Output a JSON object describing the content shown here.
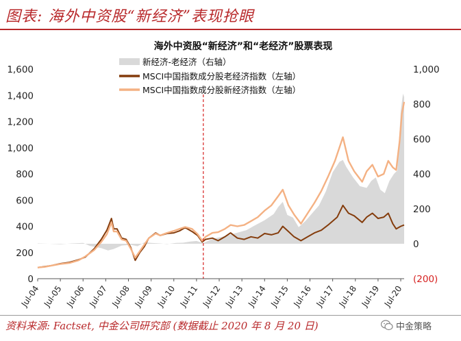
{
  "figure_title": "图表: 海外中资股“新经济”表现抢眼",
  "source": "资料来源: Factset, 中金公司研究部 (数据截止 2020 年 8 月 20 日)",
  "watermark": "中金策略",
  "chart_data": {
    "type": "line",
    "title": "海外中资股“新经济”和“老经济”股票表现",
    "x": [
      "Jul-04",
      "Jul-05",
      "Jul-06",
      "Jul-07",
      "Jul-08",
      "Jul-09",
      "Jul-10",
      "Jul-11",
      "Jul-12",
      "Jul-13",
      "Jul-14",
      "Jul-15",
      "Jul-16",
      "Jul-17",
      "Jul-18",
      "Jul-19",
      "Jul-20"
    ],
    "x_start": 2004.5,
    "x_end": 2020.65,
    "left_axis": {
      "ylim": [
        0,
        1600
      ],
      "ticks": [
        0,
        200,
        400,
        600,
        800,
        1000,
        1200,
        1400,
        1600
      ],
      "tick_labels": [
        "0",
        "200",
        "400",
        "600",
        "800",
        "1,000",
        "1,200",
        "1,400",
        "1,600"
      ]
    },
    "right_axis": {
      "ylim": [
        -200,
        1000
      ],
      "ticks": [
        -200,
        0,
        200,
        400,
        600,
        800,
        1000
      ],
      "tick_labels": [
        "(200)",
        "0",
        "200",
        "400",
        "600",
        "800",
        "1,000"
      ]
    },
    "vertical_reference": {
      "x": 2011.8,
      "style": "dashed",
      "color": "#d6201f"
    },
    "legend_location": "top-left",
    "series": [
      {
        "name": "新经济-老经济（右轴）",
        "kind": "area",
        "axis": "right",
        "color": "#d9d9d9",
        "points": [
          [
            2004.5,
            2
          ],
          [
            2005.0,
            0
          ],
          [
            2005.5,
            -3
          ],
          [
            2006.0,
            2
          ],
          [
            2006.5,
            5
          ],
          [
            2006.8,
            -12
          ],
          [
            2007.3,
            -25
          ],
          [
            2007.6,
            -38
          ],
          [
            2007.85,
            -30
          ],
          [
            2008.2,
            -10
          ],
          [
            2008.6,
            -6
          ],
          [
            2008.9,
            -14
          ],
          [
            2009.2,
            8
          ],
          [
            2009.5,
            5
          ],
          [
            2009.9,
            2
          ],
          [
            2010.2,
            -2
          ],
          [
            2010.6,
            5
          ],
          [
            2010.9,
            6
          ],
          [
            2011.2,
            12
          ],
          [
            2011.5,
            16
          ],
          [
            2011.8,
            4
          ],
          [
            2012.2,
            28
          ],
          [
            2012.7,
            42
          ],
          [
            2013.2,
            60
          ],
          [
            2013.7,
            78
          ],
          [
            2014.0,
            100
          ],
          [
            2014.5,
            135
          ],
          [
            2014.9,
            170
          ],
          [
            2015.1,
            210
          ],
          [
            2015.3,
            240
          ],
          [
            2015.5,
            165
          ],
          [
            2015.75,
            150
          ],
          [
            2016.0,
            95
          ],
          [
            2016.3,
            130
          ],
          [
            2016.6,
            175
          ],
          [
            2016.9,
            220
          ],
          [
            2017.2,
            300
          ],
          [
            2017.5,
            410
          ],
          [
            2017.8,
            470
          ],
          [
            2017.95,
            480
          ],
          [
            2018.1,
            440
          ],
          [
            2018.4,
            380
          ],
          [
            2018.7,
            330
          ],
          [
            2019.0,
            320
          ],
          [
            2019.2,
            360
          ],
          [
            2019.4,
            380
          ],
          [
            2019.6,
            310
          ],
          [
            2019.8,
            290
          ],
          [
            2020.0,
            360
          ],
          [
            2020.2,
            400
          ],
          [
            2020.35,
            420
          ],
          [
            2020.5,
            760
          ],
          [
            2020.6,
            860
          ],
          [
            2020.65,
            840
          ]
        ]
      },
      {
        "name": "MSCI中国指数成分股老经济指数（左轴）",
        "kind": "line",
        "axis": "left",
        "color": "#843c0c",
        "points": [
          [
            2004.5,
            85
          ],
          [
            2004.8,
            92
          ],
          [
            2005.1,
            100
          ],
          [
            2005.5,
            115
          ],
          [
            2005.9,
            125
          ],
          [
            2006.3,
            145
          ],
          [
            2006.6,
            165
          ],
          [
            2007.0,
            230
          ],
          [
            2007.3,
            300
          ],
          [
            2007.55,
            370
          ],
          [
            2007.75,
            460
          ],
          [
            2007.85,
            380
          ],
          [
            2008.0,
            380
          ],
          [
            2008.2,
            310
          ],
          [
            2008.4,
            300
          ],
          [
            2008.6,
            240
          ],
          [
            2008.8,
            140
          ],
          [
            2009.0,
            200
          ],
          [
            2009.2,
            245
          ],
          [
            2009.4,
            310
          ],
          [
            2009.7,
            350
          ],
          [
            2009.9,
            330
          ],
          [
            2010.2,
            345
          ],
          [
            2010.5,
            350
          ],
          [
            2010.75,
            365
          ],
          [
            2011.0,
            390
          ],
          [
            2011.3,
            360
          ],
          [
            2011.55,
            330
          ],
          [
            2011.75,
            280
          ],
          [
            2011.9,
            300
          ],
          [
            2012.2,
            310
          ],
          [
            2012.45,
            290
          ],
          [
            2012.75,
            320
          ],
          [
            2013.0,
            350
          ],
          [
            2013.3,
            310
          ],
          [
            2013.6,
            300
          ],
          [
            2013.9,
            320
          ],
          [
            2014.2,
            310
          ],
          [
            2014.5,
            345
          ],
          [
            2014.8,
            335
          ],
          [
            2015.1,
            350
          ],
          [
            2015.3,
            400
          ],
          [
            2015.55,
            360
          ],
          [
            2015.8,
            320
          ],
          [
            2016.1,
            290
          ],
          [
            2016.4,
            320
          ],
          [
            2016.7,
            350
          ],
          [
            2017.0,
            370
          ],
          [
            2017.3,
            410
          ],
          [
            2017.7,
            470
          ],
          [
            2017.95,
            560
          ],
          [
            2018.2,
            500
          ],
          [
            2018.45,
            480
          ],
          [
            2018.8,
            430
          ],
          [
            2019.0,
            470
          ],
          [
            2019.25,
            500
          ],
          [
            2019.5,
            460
          ],
          [
            2019.75,
            470
          ],
          [
            2019.95,
            500
          ],
          [
            2020.15,
            420
          ],
          [
            2020.3,
            380
          ],
          [
            2020.5,
            400
          ],
          [
            2020.65,
            410
          ]
        ]
      },
      {
        "name": "MSCI中国指数成分股新经济指数（左轴）",
        "kind": "line",
        "axis": "left",
        "color": "#f4b183",
        "points": [
          [
            2004.5,
            85
          ],
          [
            2004.8,
            90
          ],
          [
            2005.1,
            100
          ],
          [
            2005.5,
            112
          ],
          [
            2005.9,
            120
          ],
          [
            2006.3,
            140
          ],
          [
            2006.6,
            170
          ],
          [
            2007.0,
            220
          ],
          [
            2007.3,
            280
          ],
          [
            2007.55,
            340
          ],
          [
            2007.75,
            430
          ],
          [
            2007.85,
            360
          ],
          [
            2008.0,
            360
          ],
          [
            2008.2,
            300
          ],
          [
            2008.4,
            290
          ],
          [
            2008.6,
            230
          ],
          [
            2008.8,
            160
          ],
          [
            2009.0,
            210
          ],
          [
            2009.2,
            260
          ],
          [
            2009.4,
            310
          ],
          [
            2009.7,
            345
          ],
          [
            2009.9,
            330
          ],
          [
            2010.2,
            350
          ],
          [
            2010.5,
            365
          ],
          [
            2010.75,
            380
          ],
          [
            2011.0,
            395
          ],
          [
            2011.3,
            380
          ],
          [
            2011.55,
            340
          ],
          [
            2011.75,
            290
          ],
          [
            2011.9,
            320
          ],
          [
            2012.2,
            350
          ],
          [
            2012.45,
            355
          ],
          [
            2012.75,
            380
          ],
          [
            2013.0,
            410
          ],
          [
            2013.3,
            400
          ],
          [
            2013.6,
            410
          ],
          [
            2013.9,
            440
          ],
          [
            2014.2,
            470
          ],
          [
            2014.5,
            520
          ],
          [
            2014.8,
            560
          ],
          [
            2015.1,
            630
          ],
          [
            2015.3,
            680
          ],
          [
            2015.55,
            560
          ],
          [
            2015.8,
            490
          ],
          [
            2016.1,
            420
          ],
          [
            2016.4,
            500
          ],
          [
            2016.7,
            580
          ],
          [
            2017.0,
            670
          ],
          [
            2017.3,
            780
          ],
          [
            2017.6,
            900
          ],
          [
            2017.95,
            1080
          ],
          [
            2018.2,
            900
          ],
          [
            2018.45,
            820
          ],
          [
            2018.8,
            740
          ],
          [
            2019.0,
            820
          ],
          [
            2019.25,
            870
          ],
          [
            2019.5,
            780
          ],
          [
            2019.75,
            800
          ],
          [
            2019.95,
            900
          ],
          [
            2020.15,
            850
          ],
          [
            2020.3,
            830
          ],
          [
            2020.45,
            1050
          ],
          [
            2020.55,
            1260
          ],
          [
            2020.65,
            1350
          ]
        ]
      }
    ]
  }
}
